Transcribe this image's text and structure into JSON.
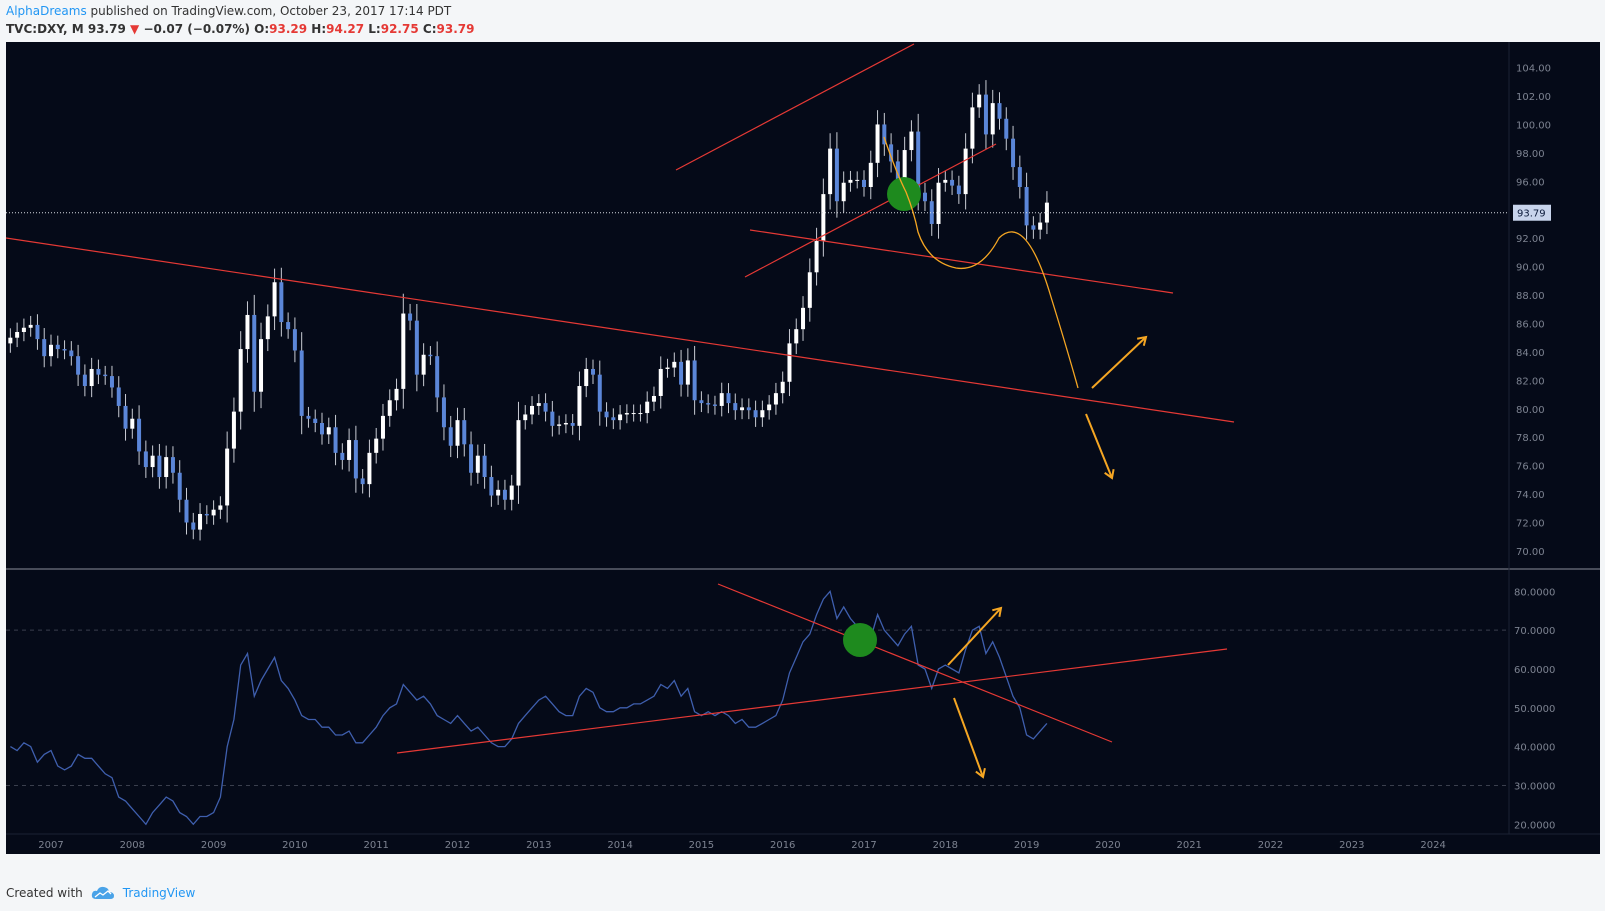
{
  "header": {
    "author": "AlphaDreams",
    "published": "published on TradingView.com, October 23, 2017 17:14 PDT",
    "symbol": "TVC:DXY, M",
    "last": "93.79",
    "change": "−0.07 (−0.07%)",
    "o_label": "O:",
    "o_value": "93.29",
    "h_label": "H:",
    "h_value": "94.27",
    "l_label": "L:",
    "l_value": "92.75",
    "c_label": "C:",
    "c_value": "93.79",
    "down_arrow": "▼"
  },
  "footer": {
    "created_with": "Created with",
    "brand": "TradingView",
    "logo_icon": "tradingview-cloud-icon"
  },
  "colors": {
    "background": "#050a18",
    "candle_up": "#ffffff",
    "candle_down": "#5b86d8",
    "trendline": "#e53935",
    "forecast": "#f5a623",
    "indicator_line": "#3f5fae",
    "marker": "#1e8a1e"
  },
  "chart_data": [
    {
      "type": "candlestick",
      "symbol": "TVC:DXY",
      "interval": "M",
      "x_ticks": [
        "2007",
        "2008",
        "2009",
        "2010",
        "2011",
        "2012",
        "2013",
        "2014",
        "2015",
        "2016",
        "2017",
        "2018",
        "2019",
        "2020",
        "2021",
        "2022",
        "2023",
        "2024"
      ],
      "y_ticks": [
        "70.00",
        "72.00",
        "74.00",
        "76.00",
        "78.00",
        "80.00",
        "82.00",
        "84.00",
        "86.00",
        "88.00",
        "90.00",
        "92.00",
        "94.00",
        "96.00",
        "98.00",
        "100.00",
        "102.00",
        "104.00"
      ],
      "ylim": [
        68.8,
        105.8
      ],
      "last_price_label": "93.79",
      "last_price": 93.79,
      "closes_monthly_from_2006_07": [
        85.0,
        85.4,
        85.7,
        85.9,
        84.9,
        83.7,
        84.5,
        84.2,
        84.1,
        83.7,
        82.4,
        81.6,
        82.8,
        82.4,
        82.3,
        81.5,
        80.2,
        78.6,
        79.3,
        77.0,
        75.9,
        76.7,
        75.2,
        76.6,
        75.5,
        73.6,
        72.0,
        71.5,
        72.6,
        72.5,
        72.9,
        73.2,
        77.2,
        79.8,
        84.2,
        86.6,
        81.2,
        84.9,
        86.5,
        88.9,
        86.1,
        85.6,
        84.1,
        79.5,
        79.3,
        79.0,
        78.2,
        78.7,
        76.9,
        76.4,
        77.8,
        75.1,
        74.7,
        76.9,
        77.9,
        79.5,
        80.6,
        81.4,
        86.7,
        86.2,
        82.4,
        83.8,
        83.7,
        80.8,
        78.7,
        77.4,
        79.2,
        77.5,
        75.5,
        76.7,
        75.2,
        73.9,
        74.3,
        73.6,
        74.6,
        79.2,
        79.6,
        80.2,
        80.4,
        79.8,
        78.8,
        78.9,
        79.0,
        78.8,
        81.6,
        82.8,
        82.4,
        79.8,
        79.4,
        79.2,
        79.6,
        79.7,
        79.7,
        79.7,
        80.5,
        80.9,
        82.8,
        82.9,
        83.3,
        81.7,
        83.4,
        80.6,
        80.4,
        80.3,
        80.2,
        81.1,
        80.4,
        79.9,
        80.1,
        79.9,
        79.4,
        79.9,
        80.3,
        81.1,
        81.9,
        84.6,
        85.6,
        87.1,
        89.6,
        91.8,
        95.1,
        98.3,
        94.6,
        95.9,
        96.1,
        96.1,
        95.6,
        97.3,
        100.0,
        98.6,
        97.4,
        96.0,
        98.2,
        99.5,
        95.2,
        94.6,
        93.0,
        95.9,
        96.1,
        95.7,
        95.1,
        98.3,
        101.2,
        102.1,
        99.3,
        101.5,
        100.4,
        99.0,
        97.0,
        95.6,
        92.9,
        92.6,
        93.1,
        94.5
      ],
      "annotations": [
        "descending channel trendlines (red)",
        "rising channel trendlines (red)",
        "green circle breakdown marker",
        "orange forecast path",
        "orange up/down scenario arrows"
      ]
    },
    {
      "type": "line",
      "indicator": "RSI",
      "y_ticks": [
        "20.0000",
        "30.0000",
        "40.0000",
        "50.0000",
        "60.0000",
        "70.0000",
        "80.0000"
      ],
      "ylim": [
        17.5,
        85.5
      ],
      "reference_levels": [
        70,
        30
      ],
      "values_monthly_from_2006_07": [
        40,
        39,
        41,
        40,
        36,
        38,
        39,
        35,
        34,
        35,
        38,
        37,
        37,
        35,
        33,
        32,
        27,
        26,
        24,
        22,
        20,
        23,
        25,
        27,
        26,
        23,
        22,
        20,
        22,
        22,
        23,
        27,
        40,
        47,
        61,
        64,
        53,
        57,
        60,
        63,
        57,
        55,
        52,
        48,
        47,
        47,
        45,
        45,
        43,
        43,
        44,
        41,
        41,
        43,
        45,
        48,
        50,
        51,
        56,
        54,
        52,
        53,
        51,
        48,
        47,
        46,
        48,
        46,
        44,
        45,
        43,
        41,
        40,
        40,
        42,
        46,
        48,
        50,
        52,
        53,
        51,
        49,
        48,
        48,
        53,
        55,
        54,
        50,
        49,
        49,
        50,
        50,
        51,
        51,
        52,
        53,
        56,
        55,
        57,
        53,
        55,
        49,
        48,
        49,
        48,
        49,
        48,
        46,
        47,
        45,
        45,
        46,
        47,
        48,
        52,
        59,
        63,
        67,
        69,
        74,
        78,
        80,
        73,
        76,
        73,
        71,
        71,
        68,
        74,
        70,
        68,
        66,
        69,
        71,
        61,
        60,
        55,
        60,
        61,
        60,
        59,
        65,
        70,
        71,
        64,
        67,
        63,
        58,
        53,
        50,
        43,
        42,
        44,
        46
      ]
    }
  ]
}
